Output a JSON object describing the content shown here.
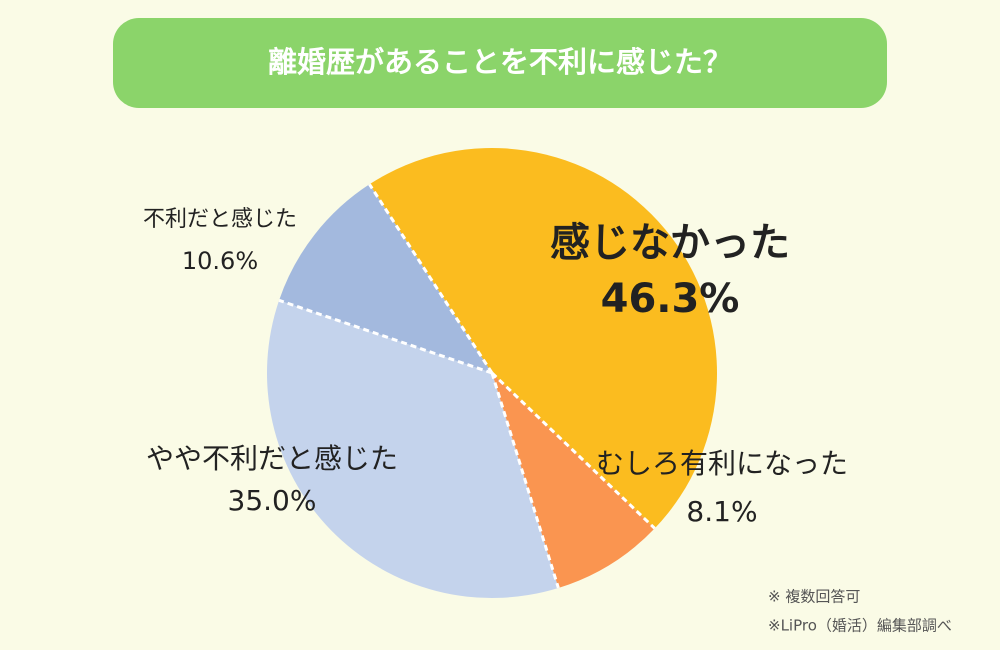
{
  "chart_data": {
    "type": "pie",
    "title": "離婚歴があることを不利に感じた？",
    "categories": [
      "感じなかった",
      "むしろ有利になった",
      "やや不利だと感じた",
      "不利だと感じた"
    ],
    "values": [
      46.3,
      8.1,
      35.0,
      10.6
    ],
    "value_labels": [
      "46.3%",
      "8.1%",
      "35.0%",
      "10.6%"
    ],
    "colors": [
      "#fbbc1f",
      "#fa9550",
      "#c4d3ec",
      "#a3b9de"
    ],
    "notes": [
      "※ 複数回答可",
      "※LiPro（婚活）編集部調べ"
    ]
  }
}
